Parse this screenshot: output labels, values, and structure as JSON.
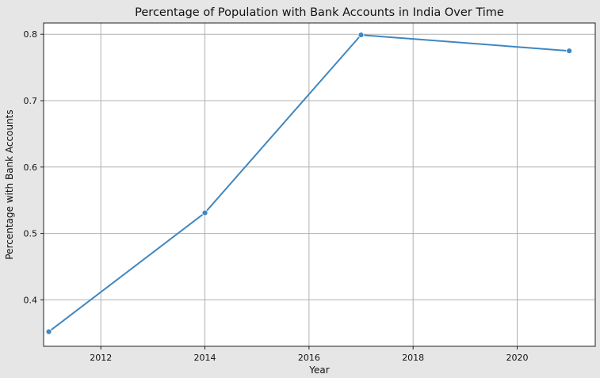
{
  "chart_data": {
    "type": "line",
    "title": "Percentage of Population with Bank Accounts in India Over Time",
    "xlabel": "Year",
    "ylabel": "Percentage with Bank Accounts",
    "xlim": [
      2010.9,
      2021.5
    ],
    "ylim": [
      0.33,
      0.817
    ],
    "xticks": [
      2012,
      2014,
      2016,
      2018,
      2020
    ],
    "yticks": [
      0.4,
      0.5,
      0.6,
      0.7,
      0.8
    ],
    "grid": true,
    "series": [
      {
        "x": [
          2011,
          2014,
          2017,
          2021
        ],
        "values": [
          0.352,
          0.531,
          0.799,
          0.775
        ]
      }
    ],
    "colors": {
      "line": "#3f87c0",
      "plot_bg": "#ffffff",
      "figure_bg": "#e6e6e6",
      "grid": "#b0b0b0"
    }
  }
}
